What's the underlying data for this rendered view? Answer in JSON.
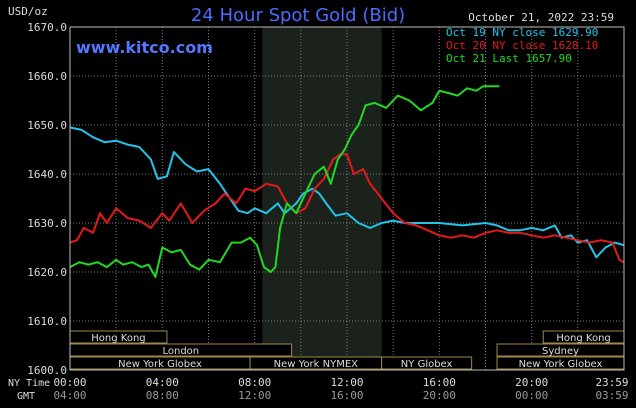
{
  "chart_data": {
    "type": "line",
    "title": "24 Hour Spot Gold (Bid)",
    "watermark": "www.kitco.com",
    "date_label": "October 21, 2022 23:59",
    "ylabel": "USD/oz",
    "ylim": [
      1600,
      1670
    ],
    "y_ticks": [
      "1600.0",
      "1610.0",
      "1620.0",
      "1630.0",
      "1640.0",
      "1650.0",
      "1660.0",
      "1670.0"
    ],
    "y_tick_values": [
      1600,
      1610,
      1620,
      1630,
      1640,
      1650,
      1660,
      1670
    ],
    "x_range_hours": [
      0,
      24
    ],
    "x_axis_ny_label": "NY Time",
    "x_axis_gmt_label": "GMT",
    "x_ticks_ny": [
      "00:00",
      "04:00",
      "08:00",
      "12:00",
      "16:00",
      "20:00",
      "23:59"
    ],
    "x_ticks_gmt": [
      "04:00",
      "08:00",
      "12:00",
      "16:00",
      "20:00",
      "00:00",
      "03:59"
    ],
    "x_tick_hours": [
      0,
      4,
      8,
      12,
      16,
      20,
      24
    ],
    "grid": true,
    "legend_position": "top-right",
    "shaded_session_hours": [
      8.33,
      13.5
    ],
    "colors": {
      "background": "#000000",
      "grid": "#7a7a7a",
      "title": "#4a6cff",
      "watermark": "#5577ff",
      "text": "#dddddd",
      "market_box": "#a08850",
      "shaded": "#1b221b"
    },
    "series": [
      {
        "name": "Oct 19 NY close 1629.90",
        "color": "#22c4e8",
        "points": [
          [
            0,
            1649.5
          ],
          [
            0.5,
            1649
          ],
          [
            1,
            1647.5
          ],
          [
            1.5,
            1646.5
          ],
          [
            2,
            1646.8
          ],
          [
            2.5,
            1646
          ],
          [
            3,
            1645.5
          ],
          [
            3.5,
            1643
          ],
          [
            3.8,
            1639
          ],
          [
            4.2,
            1639.5
          ],
          [
            4.5,
            1644.5
          ],
          [
            5,
            1642
          ],
          [
            5.5,
            1640.5
          ],
          [
            6,
            1641
          ],
          [
            6.5,
            1638
          ],
          [
            7,
            1634.5
          ],
          [
            7.3,
            1632.5
          ],
          [
            7.7,
            1632
          ],
          [
            8,
            1633
          ],
          [
            8.5,
            1632
          ],
          [
            9,
            1634
          ],
          [
            9.3,
            1632
          ],
          [
            9.8,
            1634
          ],
          [
            10.1,
            1636
          ],
          [
            10.5,
            1637
          ],
          [
            10.8,
            1636
          ],
          [
            11.1,
            1634
          ],
          [
            11.5,
            1631.5
          ],
          [
            12,
            1632
          ],
          [
            12.5,
            1630
          ],
          [
            13,
            1629
          ],
          [
            13.5,
            1630
          ],
          [
            14,
            1630.5
          ],
          [
            14.5,
            1630
          ],
          [
            15,
            1630
          ],
          [
            16,
            1630
          ],
          [
            17,
            1629.5
          ],
          [
            18,
            1630
          ],
          [
            18.5,
            1629.5
          ],
          [
            19,
            1628.5
          ],
          [
            19.5,
            1628.5
          ],
          [
            20,
            1629
          ],
          [
            20.5,
            1628.5
          ],
          [
            21,
            1629.5
          ],
          [
            21.3,
            1627
          ],
          [
            21.7,
            1627.5
          ],
          [
            22,
            1626
          ],
          [
            22.4,
            1626.5
          ],
          [
            22.8,
            1623
          ],
          [
            23.2,
            1625
          ],
          [
            23.6,
            1626
          ],
          [
            23.99,
            1625.5
          ]
        ]
      },
      {
        "name": "Oct 20 NY close 1628.10",
        "color": "#e41a1a",
        "points": [
          [
            0,
            1626
          ],
          [
            0.3,
            1626.5
          ],
          [
            0.6,
            1629
          ],
          [
            1,
            1628
          ],
          [
            1.3,
            1632
          ],
          [
            1.6,
            1630
          ],
          [
            2,
            1633
          ],
          [
            2.5,
            1631
          ],
          [
            3,
            1630.5
          ],
          [
            3.5,
            1629
          ],
          [
            4,
            1632
          ],
          [
            4.3,
            1630.5
          ],
          [
            4.8,
            1634
          ],
          [
            5.3,
            1630
          ],
          [
            5.8,
            1632.5
          ],
          [
            6.3,
            1634
          ],
          [
            6.7,
            1636
          ],
          [
            7.2,
            1634
          ],
          [
            7.6,
            1637
          ],
          [
            8,
            1636.5
          ],
          [
            8.5,
            1638
          ],
          [
            9,
            1637.5
          ],
          [
            9.4,
            1634
          ],
          [
            9.8,
            1632
          ],
          [
            10.2,
            1633
          ],
          [
            10.6,
            1637
          ],
          [
            11,
            1639
          ],
          [
            11.4,
            1643
          ],
          [
            11.7,
            1644
          ],
          [
            12,
            1644
          ],
          [
            12.3,
            1640
          ],
          [
            12.7,
            1641
          ],
          [
            13,
            1638
          ],
          [
            13.5,
            1635
          ],
          [
            14,
            1632
          ],
          [
            14.5,
            1630
          ],
          [
            15,
            1629.5
          ],
          [
            15.5,
            1628.5
          ],
          [
            16,
            1627.5
          ],
          [
            16.5,
            1627
          ],
          [
            17,
            1627.5
          ],
          [
            17.5,
            1627
          ],
          [
            18,
            1628
          ],
          [
            18.5,
            1628.5
          ],
          [
            19,
            1628
          ],
          [
            19.5,
            1628
          ],
          [
            20,
            1627.5
          ],
          [
            20.5,
            1627
          ],
          [
            21,
            1627.5
          ],
          [
            21.5,
            1627
          ],
          [
            22,
            1626.5
          ],
          [
            22.5,
            1626
          ],
          [
            23,
            1626.5
          ],
          [
            23.5,
            1626
          ],
          [
            23.8,
            1622.5
          ],
          [
            23.99,
            1622
          ]
        ]
      },
      {
        "name": "Oct 21 Last 1657.90",
        "color": "#22d822",
        "points": [
          [
            0,
            1621
          ],
          [
            0.4,
            1622
          ],
          [
            0.8,
            1621.5
          ],
          [
            1.2,
            1622
          ],
          [
            1.6,
            1621
          ],
          [
            2,
            1622.5
          ],
          [
            2.3,
            1621.5
          ],
          [
            2.7,
            1622
          ],
          [
            3.1,
            1621
          ],
          [
            3.4,
            1621.5
          ],
          [
            3.7,
            1619
          ],
          [
            4,
            1625
          ],
          [
            4.4,
            1624
          ],
          [
            4.8,
            1624.5
          ],
          [
            5.2,
            1621.5
          ],
          [
            5.6,
            1620.5
          ],
          [
            6.0,
            1622.5
          ],
          [
            6.5,
            1622
          ],
          [
            7,
            1626
          ],
          [
            7.4,
            1626
          ],
          [
            7.8,
            1627
          ],
          [
            8.1,
            1625.5
          ],
          [
            8.4,
            1621
          ],
          [
            8.7,
            1620
          ],
          [
            8.9,
            1621
          ],
          [
            9.1,
            1629
          ],
          [
            9.4,
            1634
          ],
          [
            9.8,
            1632
          ],
          [
            10.2,
            1636
          ],
          [
            10.6,
            1640
          ],
          [
            11,
            1641.5
          ],
          [
            11.3,
            1638
          ],
          [
            11.6,
            1643
          ],
          [
            11.9,
            1645
          ],
          [
            12.2,
            1648
          ],
          [
            12.5,
            1650
          ],
          [
            12.8,
            1654
          ],
          [
            13.2,
            1654.5
          ],
          [
            13.7,
            1653.5
          ],
          [
            14.2,
            1656
          ],
          [
            14.7,
            1655
          ],
          [
            15.2,
            1653
          ],
          [
            15.7,
            1654.5
          ],
          [
            16,
            1657
          ],
          [
            16.4,
            1656.5
          ],
          [
            16.8,
            1656
          ],
          [
            17.2,
            1657.5
          ],
          [
            17.6,
            1657
          ],
          [
            17.9,
            1657.9
          ],
          [
            18.6,
            1657.9
          ]
        ]
      }
    ],
    "market_sessions": [
      {
        "label": "Hong Kong",
        "start": 0,
        "end": 4.2,
        "row": 0
      },
      {
        "label": "London",
        "start": 0,
        "end": 9.6,
        "row": 1
      },
      {
        "label": "New York Globex",
        "start": 0,
        "end": 7.8,
        "row": 2
      },
      {
        "label": "New York NYMEX",
        "start": 7.8,
        "end": 13.5,
        "row": 2
      },
      {
        "label": "NY Globex",
        "start": 13.5,
        "end": 17.4,
        "row": 2
      },
      {
        "label": "Hong Kong",
        "start": 20.5,
        "end": 24,
        "row": 0
      },
      {
        "label": "Sydney",
        "start": 18.5,
        "end": 24,
        "row": 1
      },
      {
        "label": "New York Globex",
        "start": 18.5,
        "end": 24,
        "row": 2
      }
    ]
  }
}
